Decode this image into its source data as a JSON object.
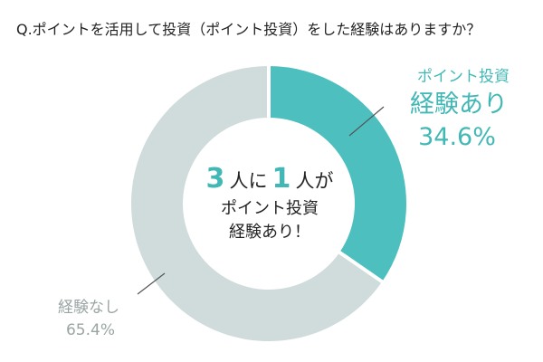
{
  "chart_data": {
    "type": "pie",
    "style": "donut",
    "title": "Q.ポイントを活用して投資（ポイント投資）をした経験はありますか？",
    "slices": [
      {
        "name_line1": "ポイント投資",
        "name_line2": "経験あり",
        "value": 34.6,
        "value_label": "34.6%",
        "color": "#4dbfbf"
      },
      {
        "name_line1": "経験なし",
        "value": 65.4,
        "value_label": "65.4%",
        "color": "#cfdcdb"
      }
    ],
    "center_text": {
      "line1_num1": "3",
      "line1_word1": "人に",
      "line1_num2": "1",
      "line1_word2": "人が",
      "line2": "ポイント投資",
      "line3": "経験あり！"
    },
    "colors": {
      "accent_text": "#41b8b6",
      "muted_text": "#9aa5a4",
      "separator": "#ffffff",
      "center_fill": "#ffffff"
    }
  }
}
